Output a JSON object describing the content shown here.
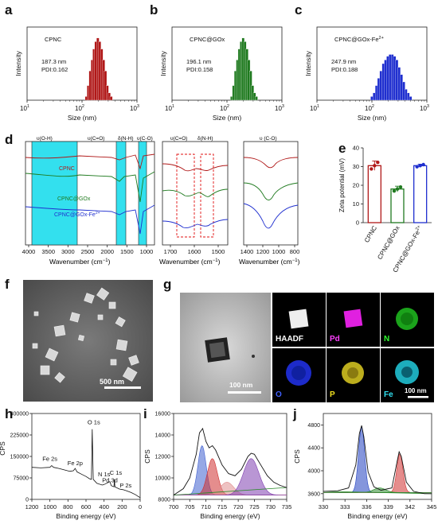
{
  "panels": {
    "a": "a",
    "b": "b",
    "c": "c",
    "d": "d",
    "e": "e",
    "f": "f",
    "g": "g",
    "h": "h",
    "i": "i",
    "j": "j"
  },
  "dls": {
    "ylabel": "Intensity",
    "xlabel": "Size (nm)",
    "ticks": [
      "10",
      "10",
      "10"
    ],
    "exps": [
      "1",
      "2",
      "3"
    ]
  },
  "d_panel": {
    "xlabel": "Wavenumber (cm",
    "xlabel_suffix": ")",
    "left_ticks": [
      "4000",
      "3500",
      "3000",
      "2500",
      "2000",
      "1500",
      "1000"
    ],
    "mid_ticks": [
      "1700",
      "1600",
      "1500"
    ],
    "right_ticks": [
      "1400",
      "1200",
      "1000",
      "800"
    ],
    "top_annots": [
      "υ(O-H)",
      "υ(C=O)",
      "δ(N-H)",
      "υ(C-O)"
    ],
    "mid_annots": [
      "υ(C=O)",
      "δ(N-H)"
    ],
    "right_annot": "υ (C-O)",
    "series_labels": [
      "CPNC",
      "CPNC@GOx",
      "CPNC@GOx-Fe"
    ],
    "series_sup": "2+"
  },
  "e_panel": {
    "ylabel": "Zeta potential (mV)",
    "yticks": [
      "0",
      "10",
      "20",
      "30",
      "40"
    ],
    "categories": [
      "CPNC",
      "CPNC@GOx",
      "CPNC@GOx-Fe"
    ],
    "cat_sup": "2+"
  },
  "f_panel": {
    "scalebar": "500 nm"
  },
  "g_panel": {
    "scalebar_left": "100 nm",
    "scalebar_right": "100 nm",
    "maps": [
      "HAADF",
      "Pd",
      "N",
      "O",
      "P",
      "Fe"
    ]
  },
  "h_panel": {
    "ylabel": "CPS",
    "xlabel": "Binding energy (eV)",
    "yticks": [
      "0",
      "75000",
      "150000",
      "225000",
      "300000"
    ],
    "xticks": [
      "1200",
      "1000",
      "800",
      "600",
      "400",
      "200",
      "0"
    ],
    "peaks": [
      "O 1s",
      "Fe 2s",
      "Fe 2p",
      "N 1s",
      "C 1s",
      "Pd 3d",
      "P 2s"
    ]
  },
  "i_panel": {
    "ylabel": "CPS",
    "xlabel": "Binding energy (eV)",
    "yticks": [
      "8000",
      "10000",
      "12000",
      "14000",
      "16000"
    ],
    "xticks": [
      "700",
      "705",
      "710",
      "715",
      "720",
      "725",
      "730",
      "735"
    ]
  },
  "j_panel": {
    "ylabel": "CPS",
    "xlabel": "Binding energy (eV)",
    "yticks": [
      "3600",
      "4000",
      "4400",
      "4800"
    ],
    "xticks": [
      "330",
      "333",
      "336",
      "339",
      "342",
      "345"
    ]
  },
  "chart_data": [
    {
      "type": "bar",
      "title": "CPNC",
      "annotation": [
        "187.3 nm",
        "PDI:0.162"
      ],
      "xlabel": "Size (nm)",
      "ylabel": "Intensity",
      "xscale": "log",
      "xlim": [
        10,
        1000
      ],
      "color": "#b01818",
      "x": [
        120,
        130,
        141,
        153,
        165,
        179,
        194,
        210,
        228,
        247,
        267,
        289,
        313,
        339
      ],
      "values": [
        1,
        4,
        8,
        11,
        14,
        16,
        17,
        16,
        14,
        11,
        8,
        4,
        2,
        1
      ]
    },
    {
      "type": "bar",
      "title": "CPNC@GOx",
      "annotation": [
        "196.1 nm",
        "PDI:0.158"
      ],
      "xlabel": "Size (nm)",
      "ylabel": "Intensity",
      "xscale": "log",
      "xlim": [
        10,
        1000
      ],
      "color": "#1f7a1f",
      "x": [
        122,
        132,
        143,
        155,
        168,
        182,
        197,
        213,
        231,
        250,
        271,
        293,
        317,
        343
      ],
      "values": [
        1,
        4,
        8,
        11,
        14,
        16,
        17,
        16,
        14,
        11,
        8,
        4,
        2,
        1
      ]
    },
    {
      "type": "bar",
      "title": "CPNC@GOx-Fe",
      "title_sup": "2+",
      "annotation": [
        "247.9 nm",
        "PDI:0.188"
      ],
      "xlabel": "Size (nm)",
      "ylabel": "Intensity",
      "xscale": "log",
      "xlim": [
        10,
        1000
      ],
      "color": "#1f2fcf",
      "x": [
        100,
        110,
        121,
        133,
        146,
        161,
        177,
        195,
        214,
        236,
        259,
        285,
        314,
        345,
        380,
        418,
        460,
        506
      ],
      "values": [
        1,
        2,
        4,
        6,
        8,
        10,
        11,
        12,
        12.5,
        12.5,
        12,
        11,
        9,
        7,
        5,
        3,
        2,
        1
      ]
    },
    {
      "type": "bar",
      "title": "",
      "xlabel": "",
      "ylabel": "Zeta potential (mV)",
      "ylim": [
        0,
        40
      ],
      "categories": [
        "CPNC",
        "CPNC@GOx",
        "CPNC@GOx-Fe2+"
      ],
      "values": [
        30.5,
        18,
        30.5
      ],
      "errors": [
        2.5,
        1.5,
        0.8
      ],
      "colors": [
        "#b01818",
        "#1f7a1f",
        "#1f2fcf"
      ]
    },
    {
      "type": "line",
      "title": "",
      "xlabel": "Binding energy (eV)",
      "ylabel": "CPS",
      "xlim": [
        1200,
        0
      ],
      "ylim": [
        0,
        300000
      ],
      "x": [
        1200,
        1100,
        1000,
        980,
        960,
        900,
        850,
        780,
        740,
        720,
        700,
        650,
        600,
        560,
        540,
        531,
        520,
        480,
        420,
        400,
        380,
        335,
        320,
        290,
        285,
        280,
        230,
        190,
        150,
        100,
        50,
        20,
        0
      ],
      "values": [
        112000,
        110000,
        112000,
        118000,
        112000,
        108000,
        104000,
        98000,
        100000,
        108000,
        96000,
        88000,
        80000,
        72000,
        70000,
        245000,
        70000,
        56000,
        50000,
        52000,
        55000,
        62000,
        48000,
        44000,
        70000,
        44000,
        36000,
        34000,
        30000,
        24000,
        16000,
        10000,
        6000
      ]
    },
    {
      "type": "line",
      "title": "",
      "xlabel": "Binding energy (eV)",
      "ylabel": "CPS",
      "xlim": [
        700,
        735
      ],
      "ylim": [
        8000,
        16000
      ],
      "x": [
        700,
        703,
        705,
        707,
        708,
        709,
        710,
        711,
        712,
        713,
        715,
        717,
        719,
        721,
        723,
        724,
        725,
        727,
        729,
        731,
        733,
        735
      ],
      "values": [
        8400,
        9000,
        10000,
        12200,
        14200,
        14600,
        13400,
        12800,
        13000,
        12600,
        11200,
        10400,
        10200,
        10800,
        12000,
        12300,
        12200,
        11200,
        10200,
        9600,
        9300,
        9100
      ]
    },
    {
      "type": "line",
      "title": "",
      "xlabel": "Binding energy (eV)",
      "ylabel": "CPS",
      "xlim": [
        330,
        345
      ],
      "ylim": [
        3500,
        5000
      ],
      "x": [
        330,
        332,
        333.5,
        334.5,
        335,
        335.3,
        335.6,
        336.2,
        337,
        338,
        339.5,
        340.2,
        340.5,
        340.8,
        341.5,
        342.5,
        344,
        345
      ],
      "values": [
        3640,
        3650,
        3700,
        4100,
        4650,
        4790,
        4600,
        3980,
        3720,
        3660,
        3700,
        4150,
        4330,
        4250,
        3800,
        3640,
        3600,
        3600
      ]
    }
  ]
}
